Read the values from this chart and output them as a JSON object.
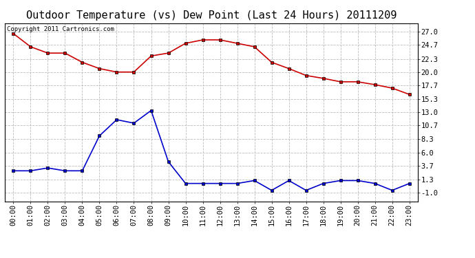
{
  "title": "Outdoor Temperature (vs) Dew Point (Last 24 Hours) 20111209",
  "copyright_text": "Copyright 2011 Cartronics.com",
  "x_labels": [
    "00:00",
    "01:00",
    "02:00",
    "03:00",
    "04:00",
    "05:00",
    "06:00",
    "07:00",
    "08:00",
    "09:00",
    "10:00",
    "11:00",
    "12:00",
    "13:00",
    "14:00",
    "15:00",
    "16:00",
    "17:00",
    "18:00",
    "19:00",
    "20:00",
    "21:00",
    "22:00",
    "23:00"
  ],
  "temp_data": [
    26.7,
    24.4,
    23.3,
    23.3,
    21.7,
    20.6,
    20.0,
    20.0,
    22.8,
    23.3,
    25.0,
    25.6,
    25.6,
    25.0,
    24.4,
    21.7,
    20.6,
    19.4,
    18.9,
    18.3,
    18.3,
    17.8,
    17.2,
    16.1
  ],
  "dew_data": [
    2.8,
    2.8,
    3.3,
    2.8,
    2.8,
    8.9,
    11.7,
    11.1,
    13.3,
    4.4,
    0.6,
    0.6,
    0.6,
    0.6,
    1.1,
    -0.6,
    1.1,
    -0.6,
    0.6,
    1.1,
    1.1,
    0.6,
    -0.6,
    0.6
  ],
  "temp_color": "#cc0000",
  "dew_color": "#0000cc",
  "bg_color": "#ffffff",
  "plot_bg_color": "#ffffff",
  "grid_color": "#bbbbbb",
  "yticks": [
    -1.0,
    1.3,
    3.7,
    6.0,
    8.3,
    10.7,
    13.0,
    15.3,
    17.7,
    20.0,
    22.3,
    24.7,
    27.0
  ],
  "ylim": [
    -2.5,
    28.5
  ],
  "marker": "s",
  "marker_size": 3,
  "line_width": 1.2,
  "title_fontsize": 11,
  "tick_fontsize": 7.5,
  "copyright_fontsize": 6.5
}
